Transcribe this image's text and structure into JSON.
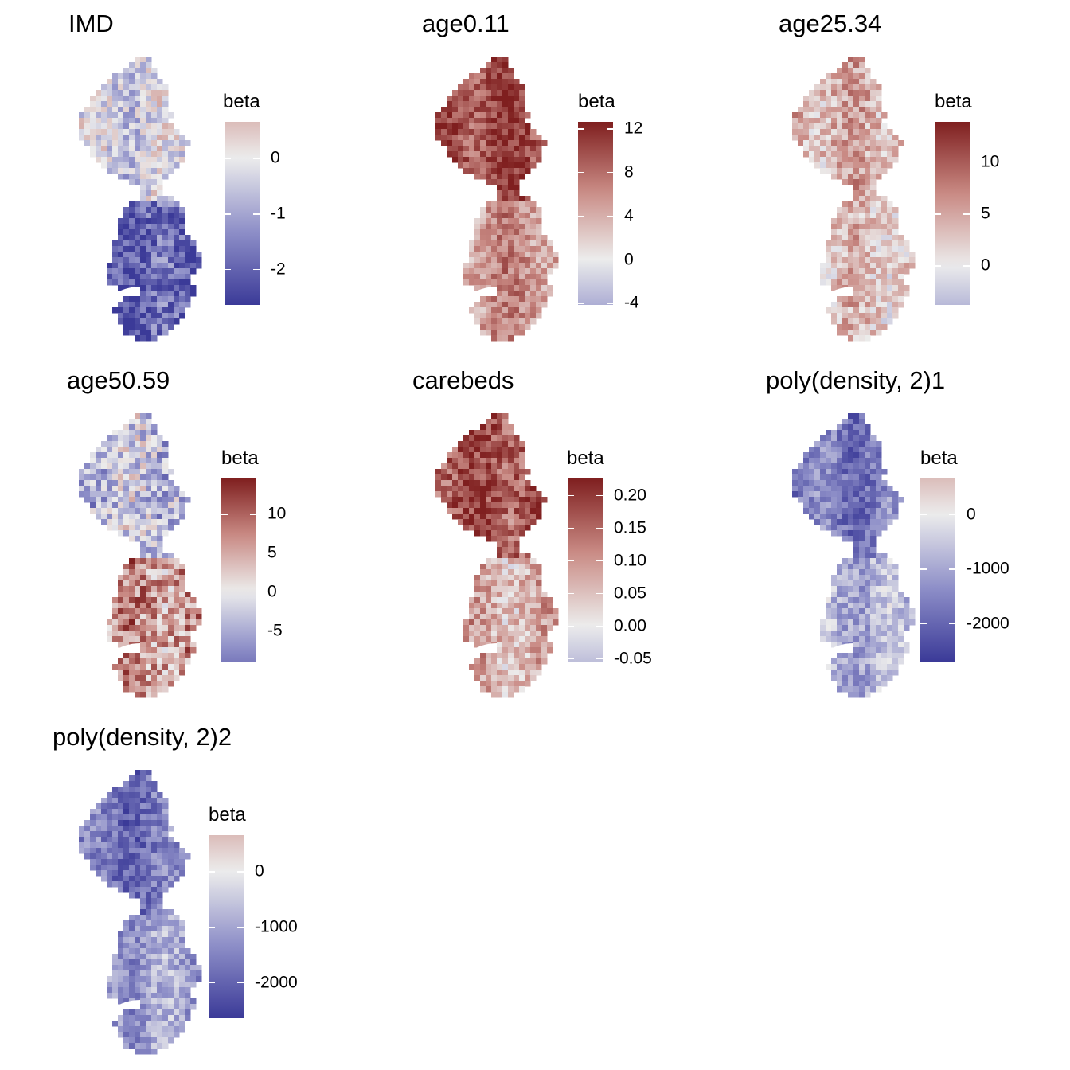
{
  "palette": {
    "low": "#3b3a98",
    "mid_low": "#8e8fc8",
    "zero": "#ececec",
    "mid_high": "#c98a84",
    "high": "#7f1f1f"
  },
  "panels": [
    {
      "id": "imd",
      "title": "IMD",
      "legend_title": "beta",
      "scale": {
        "min": -2.65,
        "max": 0.65
      },
      "ticks": [
        {
          "v": 0,
          "label": "0"
        },
        {
          "v": -1,
          "label": "-1"
        },
        {
          "v": -2,
          "label": "-2"
        }
      ],
      "north_bias": -0.1,
      "south_bias": -0.75,
      "variability": 0.35
    },
    {
      "id": "age0_11",
      "title": "age0.11",
      "legend_title": "beta",
      "scale": {
        "min": -4.2,
        "max": 12.6
      },
      "ticks": [
        {
          "v": 12,
          "label": "12"
        },
        {
          "v": 8,
          "label": "8"
        },
        {
          "v": 4,
          "label": "4"
        },
        {
          "v": 0,
          "label": "0"
        },
        {
          "v": -4,
          "label": "-4"
        }
      ],
      "north_bias": 0.8,
      "south_bias": 0.45,
      "variability": 0.25
    },
    {
      "id": "age25_34",
      "title": "age25.34",
      "legend_title": "beta",
      "scale": {
        "min": -3.8,
        "max": 13.8
      },
      "ticks": [
        {
          "v": 10,
          "label": "10"
        },
        {
          "v": 5,
          "label": "5"
        },
        {
          "v": 0,
          "label": "0"
        }
      ],
      "north_bias": 0.3,
      "south_bias": 0.2,
      "variability": 0.3
    },
    {
      "id": "age50_59",
      "title": "age50.59",
      "legend_title": "beta",
      "scale": {
        "min": -9,
        "max": 14.5
      },
      "ticks": [
        {
          "v": 10,
          "label": "10"
        },
        {
          "v": 5,
          "label": "5"
        },
        {
          "v": 0,
          "label": "0"
        },
        {
          "v": -5,
          "label": "-5"
        }
      ],
      "north_bias": -0.2,
      "south_bias": 0.45,
      "variability": 0.45
    },
    {
      "id": "carebeds",
      "title": "carebeds",
      "legend_title": "beta",
      "scale": {
        "min": -0.055,
        "max": 0.225
      },
      "ticks": [
        {
          "v": 0.2,
          "label": "0.20"
        },
        {
          "v": 0.15,
          "label": "0.15"
        },
        {
          "v": 0.1,
          "label": "0.10"
        },
        {
          "v": 0.05,
          "label": "0.05"
        },
        {
          "v": 0.0,
          "label": "0.00"
        },
        {
          "v": -0.05,
          "label": "-0.05"
        }
      ],
      "north_bias": 0.75,
      "south_bias": 0.3,
      "variability": 0.3
    },
    {
      "id": "poly1",
      "title": "poly(density, 2)1",
      "legend_title": "beta",
      "scale": {
        "min": -2700,
        "max": 650
      },
      "ticks": [
        {
          "v": 0,
          "label": "0"
        },
        {
          "v": -1000,
          "label": "-1000"
        },
        {
          "v": -2000,
          "label": "-2000"
        }
      ],
      "north_bias": -0.6,
      "south_bias": -0.3,
      "variability": 0.25
    },
    {
      "id": "poly2",
      "title": "poly(density, 2)2",
      "legend_title": "beta",
      "scale": {
        "min": -2650,
        "max": 650
      },
      "ticks": [
        {
          "v": 0,
          "label": "0"
        },
        {
          "v": -1000,
          "label": "-1000"
        },
        {
          "v": -2000,
          "label": "-2000"
        }
      ],
      "north_bias": -0.65,
      "south_bias": -0.4,
      "variability": 0.25
    }
  ]
}
